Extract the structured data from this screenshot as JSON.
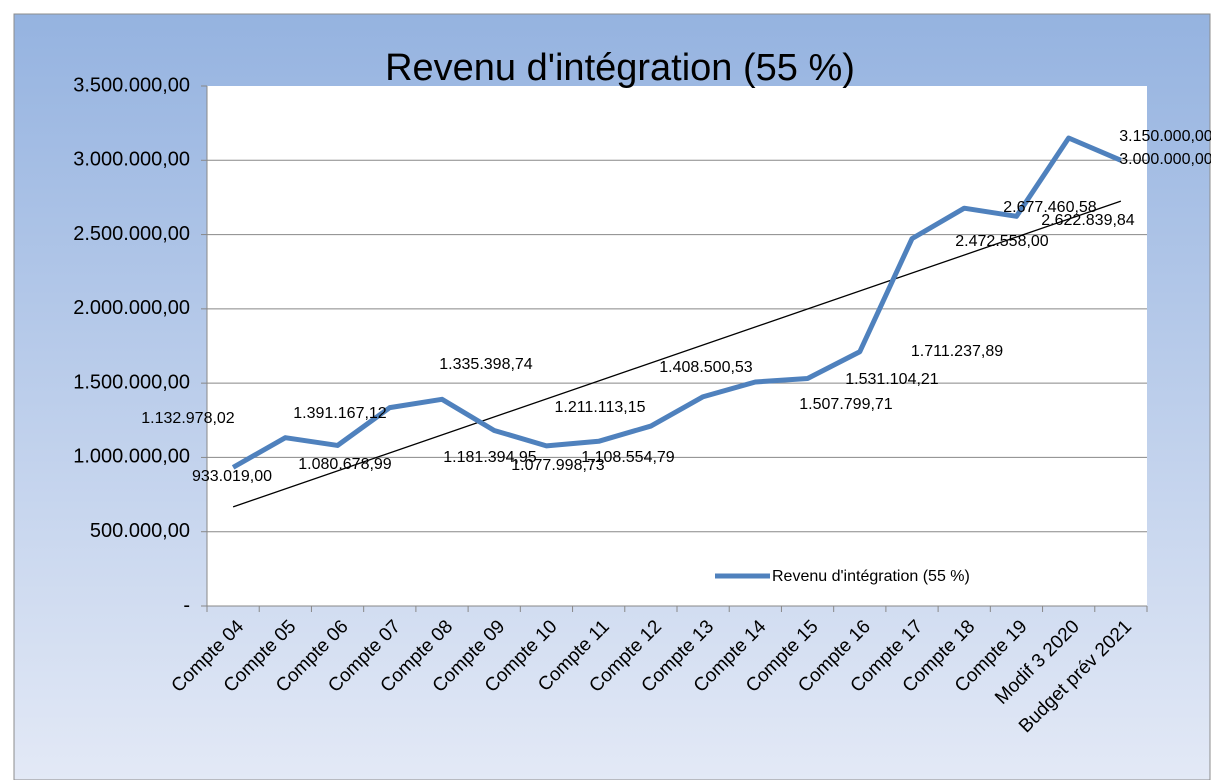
{
  "chart_data": {
    "type": "line",
    "title": "Revenu d'intégration (55 %)",
    "categories": [
      "Compte 04",
      "Compte 05",
      "Compte 06",
      "Compte 07",
      "Compte 08",
      "Compte 09",
      "Compte 10",
      "Compte 11",
      "Compte 12",
      "Compte 13",
      "Compte 14",
      "Compte 15",
      "Compte 16",
      "Compte 17",
      "Compte 18",
      "Compte 19",
      "Modif 3 2020",
      "Budget prév 2021"
    ],
    "series": [
      {
        "name": "Revenu d'intégration (55 %)",
        "color": "#4f81bd",
        "values": [
          933019.0,
          1132978.02,
          1080678.99,
          1335398.74,
          1391167.12,
          1181394.95,
          1077998.73,
          1108554.79,
          1211113.15,
          1408500.53,
          1507799.71,
          1531104.21,
          1711237.89,
          2472558.0,
          2677460.58,
          2622839.84,
          3150000.0,
          3000000.0
        ],
        "value_labels": [
          "933.019,00",
          "1.132.978,02",
          "1.080.678,99",
          "1.335.398,74",
          "1.391.167,12",
          "1.181.394,95",
          "1.077.998,73",
          "1.108.554,79",
          "1.211.113,15",
          "1.408.500,53",
          "1.507.799,71",
          "1.531.104,21",
          "1.711.237,89",
          "2.472.558,00",
          "2.677.460,58",
          "2.622.839,84",
          "3.150.000,00",
          "3.000.000,00"
        ]
      }
    ],
    "trendline": true,
    "ylim": [
      0,
      3500000
    ],
    "yticks": [
      {
        "value": 0,
        "label": "-"
      },
      {
        "value": 500000,
        "label": "500.000,00"
      },
      {
        "value": 1000000,
        "label": "1.000.000,00"
      },
      {
        "value": 1500000,
        "label": "1.500.000,00"
      },
      {
        "value": 2000000,
        "label": "2.000.000,00"
      },
      {
        "value": 2500000,
        "label": "2.500.000,00"
      },
      {
        "value": 3000000,
        "label": "3.000.000,00"
      },
      {
        "value": 3500000,
        "label": "3.500.000,00"
      }
    ],
    "grid": true,
    "legend": "inside-bottom-right"
  }
}
